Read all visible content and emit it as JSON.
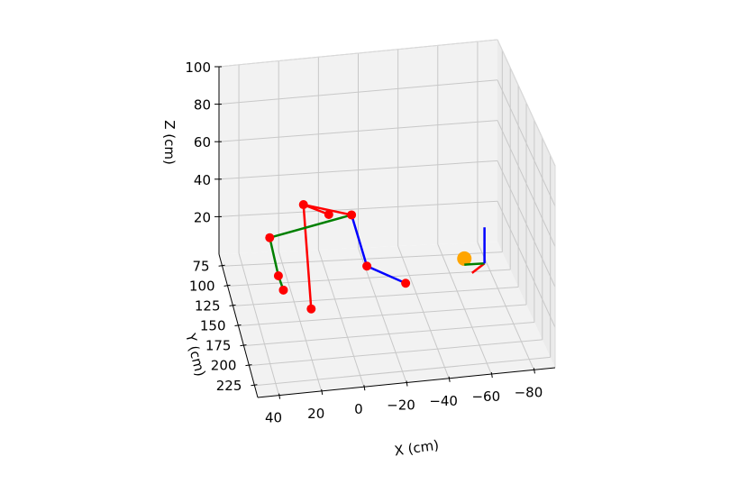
{
  "chart_data": {
    "type": "scatter3d",
    "xlabel": "X (cm)",
    "ylabel": "Y (cm)",
    "zlabel": "Z (cm)",
    "x_ticks": [
      "40",
      "20",
      "0",
      "−20",
      "−40",
      "−60",
      "−80"
    ],
    "y_ticks": [
      "75",
      "100",
      "125",
      "150",
      "175",
      "200",
      "225"
    ],
    "z_ticks": [
      "20",
      "40",
      "60",
      "80",
      "100"
    ],
    "xlim": [
      50,
      -90
    ],
    "ylim": [
      60,
      240
    ],
    "zlim": [
      0,
      100
    ],
    "grid": true,
    "pane_color": "#f2f2f2",
    "grid_color": "#c8c8c8",
    "joint_color": "#ff0000",
    "target_marker": {
      "x": -68,
      "y": 95,
      "z": 5,
      "color": "#ffa500"
    },
    "bones": [
      {
        "from": "head",
        "to": "neck",
        "color": "#ff0000"
      },
      {
        "from": "neck",
        "to": "right_shoulder",
        "color": "#ff0000"
      },
      {
        "from": "neck",
        "to": "pelvis",
        "color": "#ff0000"
      },
      {
        "from": "right_shoulder",
        "to": "left_shoulder",
        "color": "#008000"
      },
      {
        "from": "left_shoulder",
        "to": "left_elbow",
        "color": "#008000"
      },
      {
        "from": "left_elbow",
        "to": "left_wrist",
        "color": "#008000"
      },
      {
        "from": "right_shoulder",
        "to": "right_elbow",
        "color": "#0000ff"
      },
      {
        "from": "right_elbow",
        "to": "right_wrist",
        "color": "#0000ff"
      }
    ],
    "joints": {
      "head": {
        "x": -2,
        "y": 85,
        "z": 28
      },
      "neck": {
        "x": 10,
        "y": 80,
        "z": 32
      },
      "right_shoulder": {
        "x": -14,
        "y": 80,
        "z": 25
      },
      "left_shoulder": {
        "x": 28,
        "y": 90,
        "z": 20
      },
      "left_elbow": {
        "x": 26,
        "y": 110,
        "z": 8
      },
      "left_wrist": {
        "x": 24,
        "y": 114,
        "z": 2
      },
      "right_elbow": {
        "x": -17,
        "y": 115,
        "z": 12
      },
      "right_wrist": {
        "x": -35,
        "y": 123,
        "z": 5
      },
      "pelvis": {
        "x": 14,
        "y": 145,
        "z": 4
      }
    },
    "coord_frame": [
      {
        "axis": "x",
        "color": "#ff0000"
      },
      {
        "axis": "y",
        "color": "#008000"
      },
      {
        "axis": "z",
        "color": "#0000ff"
      }
    ]
  }
}
